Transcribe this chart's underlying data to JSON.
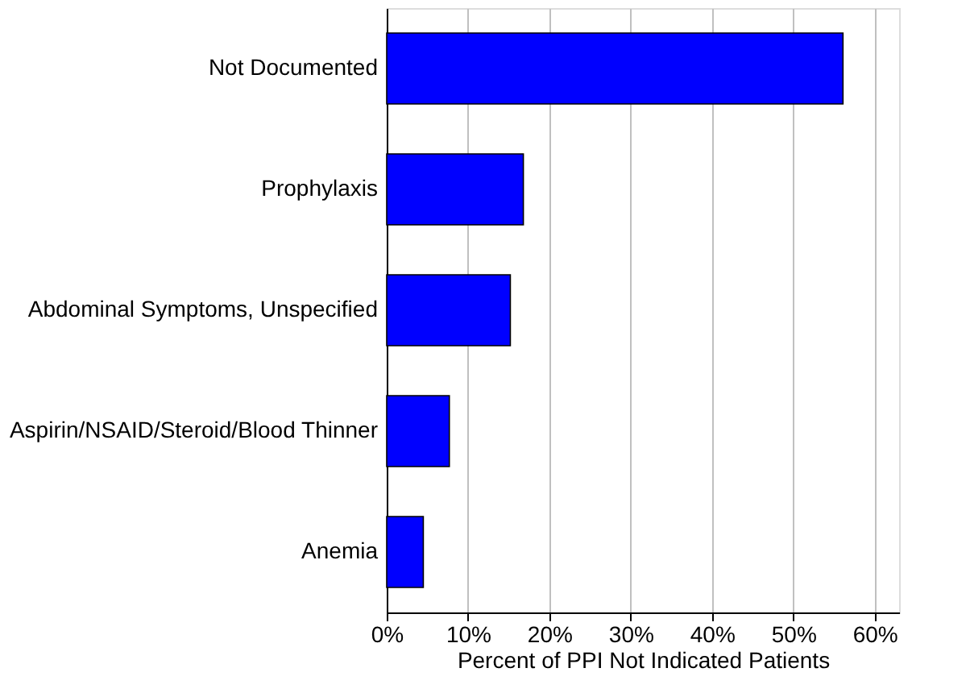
{
  "chart_data": {
    "type": "bar",
    "orientation": "horizontal",
    "categories": [
      "Not Documented",
      "Prophylaxis",
      "Abdominal Symptoms, Unspecified",
      "Aspirin/NSAID/Steroid/Blood Thinner",
      "Anemia"
    ],
    "values": [
      56.1,
      16.8,
      15.2,
      7.7,
      4.5
    ],
    "color": "#0000ff",
    "xlabel": "Percent of PPI Not Indicated Patients",
    "xlim": [
      0,
      63
    ],
    "xticks": [
      {
        "value": 0,
        "label": "0%"
      },
      {
        "value": 10,
        "label": "10%"
      },
      {
        "value": 20,
        "label": "20%"
      },
      {
        "value": 30,
        "label": "30%"
      },
      {
        "value": 40,
        "label": "40%"
      },
      {
        "value": 50,
        "label": "50%"
      },
      {
        "value": 60,
        "label": "60%"
      }
    ],
    "grid": "x"
  }
}
